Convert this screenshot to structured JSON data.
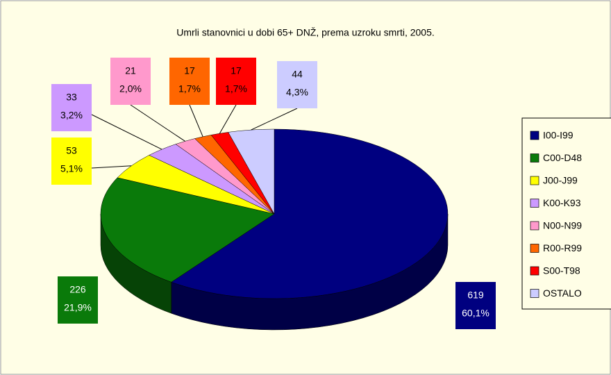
{
  "chart_data": {
    "type": "pie",
    "title": "Umrli stanovnici u dobi 65+ DNŽ, prema uzroku smrti, 2005.",
    "categories": [
      "I00-I99",
      "C00-D48",
      "J00-J99",
      "K00-K93",
      "N00-N99",
      "R00-R99",
      "S00-T98",
      "OSTALO"
    ],
    "values": [
      619,
      226,
      53,
      33,
      21,
      17,
      17,
      44
    ],
    "percent_labels": [
      "60,1%",
      "21,9%",
      "5,1%",
      "3,2%",
      "2,0%",
      "1,7%",
      "1,7%",
      "4,3%"
    ],
    "colors": [
      "#000080",
      "#0a7a0a",
      "#ffff00",
      "#cc99ff",
      "#ff99cc",
      "#ff6600",
      "#ff0000",
      "#ccccff"
    ],
    "legend": "right"
  }
}
